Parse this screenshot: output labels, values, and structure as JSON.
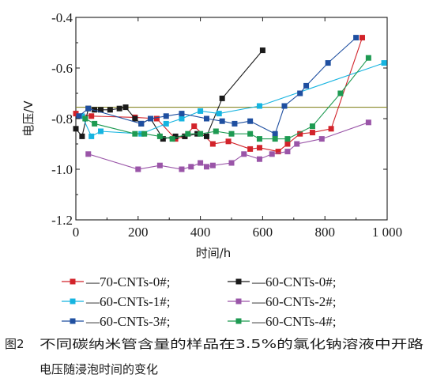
{
  "chart_data": {
    "type": "line",
    "xlabel": "时间/h",
    "ylabel": "电压/V",
    "xlim": [
      0,
      1000
    ],
    "ylim": [
      -1.2,
      -0.4
    ],
    "xticks": [
      0,
      200,
      400,
      600,
      800,
      1000
    ],
    "xtick_labels": [
      "0",
      "200",
      "400",
      "600",
      "800",
      "1 000"
    ],
    "yticks": [
      -1.2,
      -1.0,
      -0.8,
      -0.6,
      -0.4
    ],
    "ytick_labels": [
      "-1.2",
      "-1.0",
      "-0.8",
      "-0.6",
      "-0.4"
    ],
    "grid": false,
    "legend_position": "bottom",
    "reference_line": {
      "y": -0.755,
      "color": "#8a8a2a"
    },
    "series": [
      {
        "name": "—70-CNTs-0#;",
        "color": "#d2232a",
        "x": [
          0,
          50,
          190,
          260,
          320,
          350,
          380,
          440,
          490,
          560,
          590,
          650,
          680,
          720,
          760,
          820,
          920
        ],
        "y": [
          -0.78,
          -0.79,
          -0.795,
          -0.8,
          -0.88,
          -0.87,
          -0.83,
          -0.9,
          -0.89,
          -0.92,
          -0.915,
          -0.93,
          -0.9,
          -0.86,
          -0.855,
          -0.84,
          -0.48
        ]
      },
      {
        "name": "—60-CNTs-0#;",
        "color": "#1a1a1a",
        "x": [
          0,
          20,
          40,
          60,
          80,
          110,
          140,
          160,
          190,
          210,
          240,
          280,
          320,
          350,
          390,
          420,
          470,
          600
        ],
        "y": [
          -0.84,
          -0.87,
          -0.76,
          -0.765,
          -0.765,
          -0.765,
          -0.76,
          -0.755,
          -0.8,
          -0.82,
          -0.8,
          -0.88,
          -0.87,
          -0.87,
          -0.86,
          -0.87,
          -0.72,
          -0.53
        ]
      },
      {
        "name": "—60-CNTs-1#;",
        "color": "#16b4e0",
        "x": [
          20,
          50,
          80,
          210,
          290,
          340,
          400,
          460,
          590,
          990
        ],
        "y": [
          -0.79,
          -0.87,
          -0.85,
          -0.86,
          -0.82,
          -0.8,
          -0.77,
          -0.78,
          -0.75,
          -0.58
        ]
      },
      {
        "name": "—60-CNTs-2#;",
        "color": "#9a55a8",
        "x": [
          40,
          200,
          270,
          340,
          370,
          400,
          420,
          440,
          500,
          540,
          590,
          630,
          680,
          710,
          790,
          940
        ],
        "y": [
          -0.94,
          -1.0,
          -0.985,
          -1.0,
          -0.99,
          -0.975,
          -0.99,
          -0.985,
          -0.975,
          -0.94,
          -0.96,
          -0.94,
          -0.93,
          -0.9,
          -0.88,
          -0.815
        ]
      },
      {
        "name": "—60-CNTs-3#;",
        "color": "#1f4fa0",
        "x": [
          10,
          40,
          210,
          240,
          290,
          340,
          420,
          470,
          510,
          560,
          640,
          670,
          720,
          740,
          810,
          900
        ],
        "y": [
          -0.79,
          -0.76,
          -0.82,
          -0.8,
          -0.79,
          -0.78,
          -0.8,
          -0.81,
          -0.82,
          -0.81,
          -0.86,
          -0.75,
          -0.7,
          -0.67,
          -0.58,
          -0.48
        ]
      },
      {
        "name": "—60-CNTs-4#;",
        "color": "#1e9a52",
        "x": [
          30,
          60,
          190,
          220,
          270,
          310,
          360,
          400,
          450,
          500,
          560,
          590,
          640,
          680,
          760,
          850,
          940
        ],
        "y": [
          -0.8,
          -0.82,
          -0.86,
          -0.86,
          -0.87,
          -0.88,
          -0.86,
          -0.86,
          -0.85,
          -0.86,
          -0.86,
          -0.88,
          -0.88,
          -0.88,
          -0.83,
          -0.7,
          -0.56
        ]
      }
    ]
  },
  "caption": {
    "figure_no": "图2",
    "line1": "不同碳纳米管含量的样品在3.5%的氯化钠溶液中开路",
    "line2": "电压随浸泡时间的变化"
  }
}
